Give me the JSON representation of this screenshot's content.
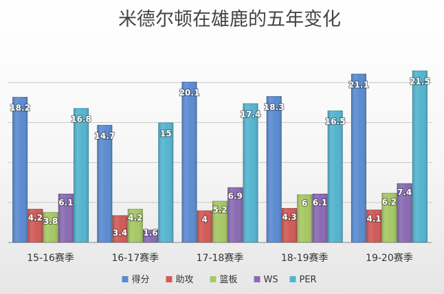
{
  "chart_data": {
    "type": "bar",
    "title": "米德尔顿在雄鹿的五年变化",
    "categories": [
      "15-16赛季",
      "16-17赛季",
      "17-18赛季",
      "18-19赛季",
      "19-20赛季"
    ],
    "series": [
      {
        "name": "得分",
        "color": "#5b8bd0",
        "values": [
          18.2,
          14.7,
          20.1,
          18.3,
          21.1
        ]
      },
      {
        "name": "助攻",
        "color": "#d05b57",
        "values": [
          4.2,
          3.4,
          4,
          4.3,
          4.1
        ]
      },
      {
        "name": "篮板",
        "color": "#a6c865",
        "values": [
          3.8,
          4.2,
          5.2,
          6,
          6.2
        ]
      },
      {
        "name": "WS",
        "color": "#8a6bb3",
        "values": [
          6.1,
          1.6,
          6.9,
          6.1,
          7.4
        ]
      },
      {
        "name": "PER",
        "color": "#54b4cf",
        "values": [
          16.8,
          15,
          17.4,
          16.5,
          21.5
        ]
      }
    ],
    "ylim": [
      0,
      25
    ],
    "grid": true,
    "legend": "bottom",
    "xlabel": "",
    "ylabel": ""
  }
}
